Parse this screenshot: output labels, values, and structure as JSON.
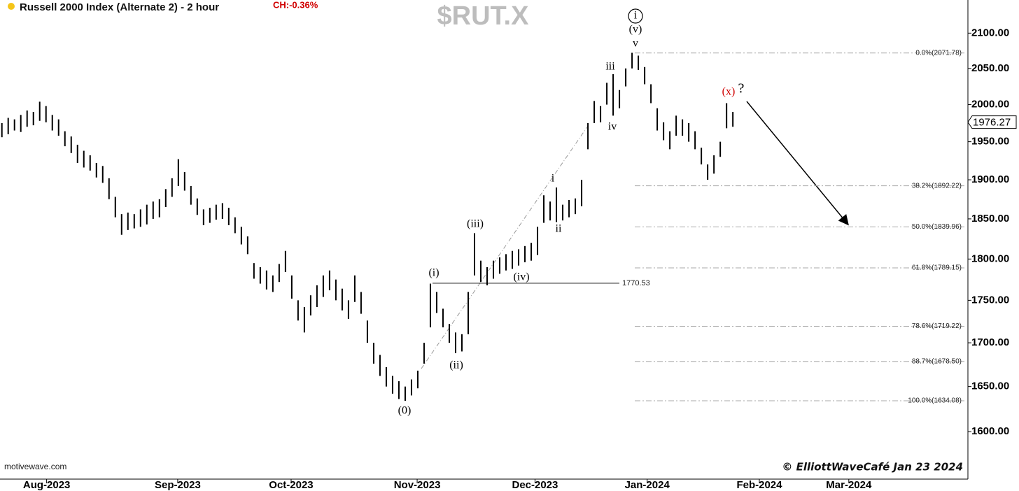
{
  "chart_data": {
    "type": "ohlc",
    "title": "Russell 2000 Index (Alternate 2) - 2 hour",
    "change": "CH:-0.36%",
    "symbol": "$RUT.X",
    "source": "motivewave.com",
    "credit": "© ElliottWaveCafé Jan 23 2024",
    "color": "#000000",
    "log_scale": true,
    "xlim": [
      -0.3,
      153.3
    ],
    "xticks": [
      {
        "value": 7.1,
        "label": "Aug-2023"
      },
      {
        "value": 27.9,
        "label": "Sep-2023"
      },
      {
        "value": 45.9,
        "label": "Oct-2023"
      },
      {
        "value": 65.9,
        "label": "Nov-2023"
      },
      {
        "value": 84.6,
        "label": "Dec-2023"
      },
      {
        "value": 102.4,
        "label": "Jan-2024"
      },
      {
        "value": 120.2,
        "label": "Feb-2024"
      },
      {
        "value": 134.4,
        "label": "Mar-2024"
      }
    ],
    "ylim": [
      1549,
      2148
    ],
    "yticks": [
      {
        "value": 1600,
        "label": "1600.00"
      },
      {
        "value": 1650,
        "label": "1650.00"
      },
      {
        "value": 1700,
        "label": "1700.00"
      },
      {
        "value": 1750,
        "label": "1750.00"
      },
      {
        "value": 1800,
        "label": "1800.00"
      },
      {
        "value": 1850,
        "label": "1850.00"
      },
      {
        "value": 1900,
        "label": "1900.00"
      },
      {
        "value": 1950,
        "label": "1950.00"
      },
      {
        "value": 2000,
        "label": "2000.00"
      },
      {
        "value": 2050,
        "label": "2050.00"
      },
      {
        "value": 2100,
        "label": "2100.00"
      }
    ],
    "last_price": 1976.27,
    "level": 1770.53,
    "fib_levels": [
      {
        "value": 2071.78,
        "label": "0.0%(2071.78)"
      },
      {
        "value": 1892.22,
        "label": "38.2%(1892.22)"
      },
      {
        "value": 1839.96,
        "label": "50.0%(1839.96)"
      },
      {
        "value": 1789.15,
        "label": "61.8%(1789.15)"
      },
      {
        "value": 1719.22,
        "label": "78.6%(1719.22)"
      },
      {
        "value": 1678.5,
        "label": "88.7%(1678.50)"
      },
      {
        "value": 1634.08,
        "label": "100.0%(1634.08)"
      }
    ],
    "annotations": [
      {
        "text": "i",
        "color": "#000000"
      },
      {
        "text": "(v)",
        "color": "#000000"
      },
      {
        "text": "v",
        "color": "#000000"
      },
      {
        "text": "iii",
        "color": "#000000"
      },
      {
        "text": "iv",
        "color": "#000000"
      },
      {
        "text": "i",
        "color": "#000000"
      },
      {
        "text": "ii",
        "color": "#000000"
      },
      {
        "text": "(iii)",
        "color": "#000000"
      },
      {
        "text": "(i)",
        "color": "#000000"
      },
      {
        "text": "(iv)",
        "color": "#000000"
      },
      {
        "text": "(ii)",
        "color": "#000000"
      },
      {
        "text": "(0)",
        "color": "#000000"
      },
      {
        "text": "(x)",
        "color": "#d00000"
      },
      {
        "text": "?",
        "color": "#000000"
      }
    ],
    "low": [
      1956,
      1960,
      1965,
      1963,
      1970,
      1972,
      1978,
      1976,
      1965,
      1958,
      1944,
      1935,
      1922,
      1916,
      1912,
      1903,
      1896,
      1875,
      1852,
      1830,
      1836,
      1838,
      1840,
      1843,
      1850,
      1852,
      1865,
      1878,
      1892,
      1886,
      1868,
      1855,
      1842,
      1845,
      1849,
      1850,
      1842,
      1832,
      1818,
      1806,
      1776,
      1770,
      1763,
      1760,
      1772,
      1784,
      1752,
      1726,
      1712,
      1732,
      1742,
      1754,
      1762,
      1750,
      1738,
      1728,
      1748,
      1734,
      1700,
      1676,
      1662,
      1650,
      1642,
      1636,
      1634,
      1640,
      1648,
      1676,
      1718,
      1735,
      1718,
      1700,
      1688,
      1690,
      1710,
      1780,
      1772,
      1768,
      1776,
      1782,
      1786,
      1788,
      1792,
      1796,
      1798,
      1805,
      1845,
      1848,
      1846,
      1848,
      1852,
      1856,
      1866,
      1940,
      1975,
      1976,
      2000,
      1985,
      1995,
      2025,
      2050,
      2048,
      2028,
      2002,
      1965,
      1952,
      1940,
      1958,
      1958,
      1950,
      1940,
      1920,
      1900,
      1908,
      1930,
      1968,
      1970
    ],
    "high": [
      1975,
      1982,
      1980,
      1986,
      1992,
      1990,
      2004,
      1998,
      1986,
      1980,
      1964,
      1957,
      1946,
      1938,
      1932,
      1922,
      1918,
      1902,
      1878,
      1856,
      1858,
      1856,
      1862,
      1868,
      1872,
      1875,
      1888,
      1902,
      1927,
      1910,
      1892,
      1876,
      1862,
      1864,
      1868,
      1870,
      1864,
      1852,
      1840,
      1828,
      1795,
      1790,
      1786,
      1780,
      1794,
      1810,
      1780,
      1750,
      1742,
      1756,
      1768,
      1780,
      1786,
      1775,
      1764,
      1750,
      1780,
      1760,
      1726,
      1700,
      1686,
      1672,
      1662,
      1656,
      1650,
      1658,
      1668,
      1700,
      1770,
      1760,
      1740,
      1722,
      1712,
      1710,
      1760,
      1832,
      1798,
      1790,
      1798,
      1802,
      1806,
      1810,
      1812,
      1816,
      1820,
      1840,
      1880,
      1872,
      1890,
      1868,
      1874,
      1876,
      1900,
      1975,
      2005,
      1998,
      2030,
      2042,
      2020,
      2050,
      2072,
      2068,
      2052,
      2028,
      1995,
      1976,
      1964,
      1985,
      1980,
      1975,
      1964,
      1942,
      1920,
      1932,
      1950,
      2002,
      1990
    ]
  }
}
